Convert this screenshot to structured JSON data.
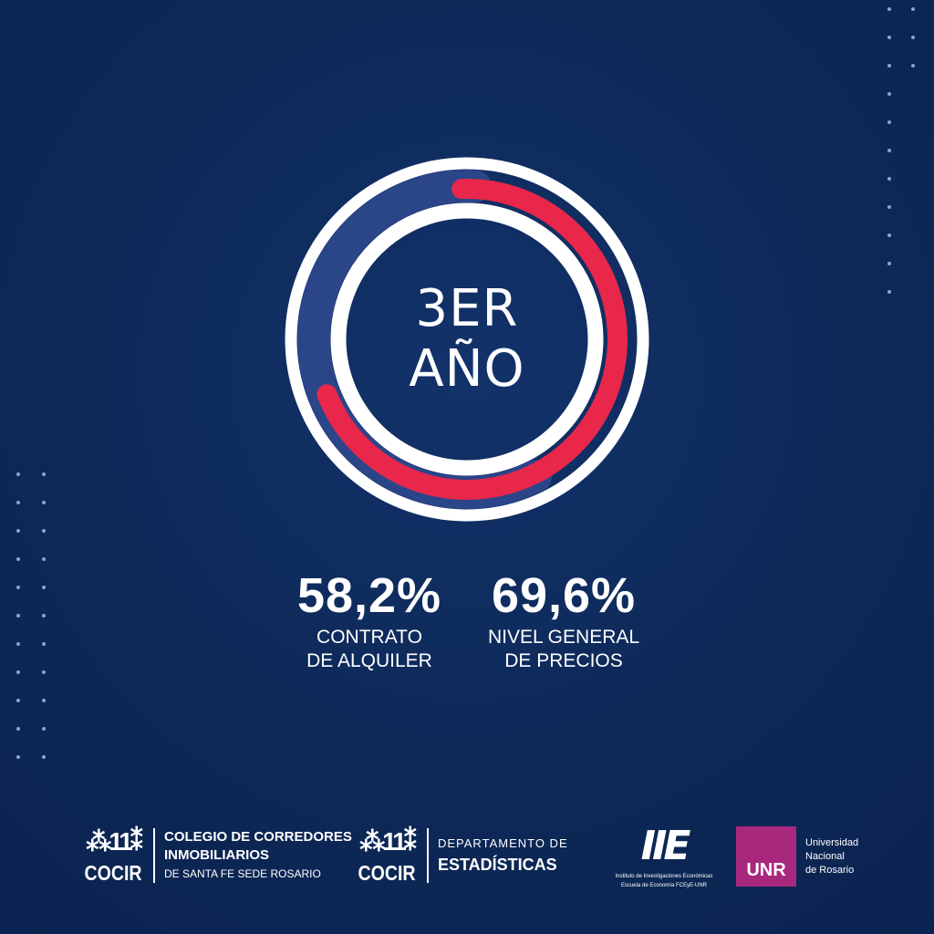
{
  "chart_data": {
    "type": "radial-bar",
    "center_label": [
      "3ER",
      "AÑO"
    ],
    "series": [
      {
        "name": "CONTRATO DE ALQUILER",
        "value": 58.2,
        "display": "58,2%",
        "label_lines": [
          "CONTRATO",
          "DE ALQUILER"
        ],
        "color": "#2b4589",
        "direction": "counterclockwise"
      },
      {
        "name": "NIVEL GENERAL DE PRECIOS",
        "value": 69.6,
        "display": "69,6%",
        "label_lines": [
          "NIVEL GENERAL",
          "DE PRECIOS"
        ],
        "color": "#e8274b",
        "direction": "clockwise"
      }
    ],
    "max": 100
  },
  "colors": {
    "background": "#0e2a5a",
    "ring": "#ffffff",
    "unr": "#a8287e"
  },
  "footer": {
    "cocir1": {
      "mark": "COCIR",
      "lines": [
        "COLEGIO DE CORREDORES",
        "INMOBILIARIOS",
        "DE SANTA FE SEDE ROSARIO"
      ]
    },
    "cocir2": {
      "mark": "COCIR",
      "lines": [
        "DEPARTAMENTO DE",
        "ESTADÍSTICAS"
      ]
    },
    "iie": {
      "mark": "IIE",
      "lines": [
        "Instituto de Investigaciones Económicas",
        "Escuela de Economía FCEyE-UNR"
      ]
    },
    "unr": {
      "mark": "UNR",
      "lines": [
        "Universidad",
        "Nacional",
        "de Rosario"
      ]
    }
  }
}
